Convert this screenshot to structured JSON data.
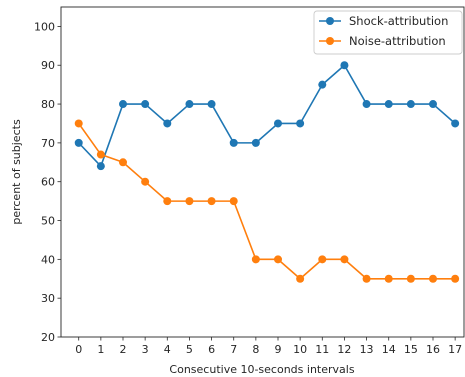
{
  "chart_data": {
    "type": "line",
    "title": "",
    "xlabel": "Consecutive 10-seconds intervals",
    "ylabel": "percent of subjects",
    "x": [
      0,
      1,
      2,
      3,
      4,
      5,
      6,
      7,
      8,
      9,
      10,
      11,
      12,
      13,
      14,
      15,
      16,
      17
    ],
    "xticks": [
      "0",
      "1",
      "2",
      "3",
      "4",
      "5",
      "6",
      "7",
      "8",
      "9",
      "10",
      "11",
      "12",
      "13",
      "14",
      "15",
      "16",
      "17"
    ],
    "yticks": [
      "20",
      "30",
      "40",
      "50",
      "60",
      "70",
      "80",
      "90",
      "100"
    ],
    "xlim": [
      -0.8,
      17.4
    ],
    "ylim": [
      20,
      105
    ],
    "grid": false,
    "legend_position": "top-right",
    "series": [
      {
        "name": "Shock-attribution",
        "color": "#1f77b4",
        "marker": "circle",
        "values": [
          70,
          64,
          80,
          80,
          75,
          80,
          80,
          70,
          70,
          75,
          75,
          85,
          90,
          80,
          80,
          80,
          80,
          75
        ]
      },
      {
        "name": "Noise-attribution",
        "color": "#ff7f0e",
        "marker": "circle",
        "values": [
          75,
          67,
          65,
          60,
          55,
          55,
          55,
          55,
          40,
          40,
          35,
          40,
          40,
          35,
          35,
          35,
          35,
          35
        ]
      }
    ]
  }
}
